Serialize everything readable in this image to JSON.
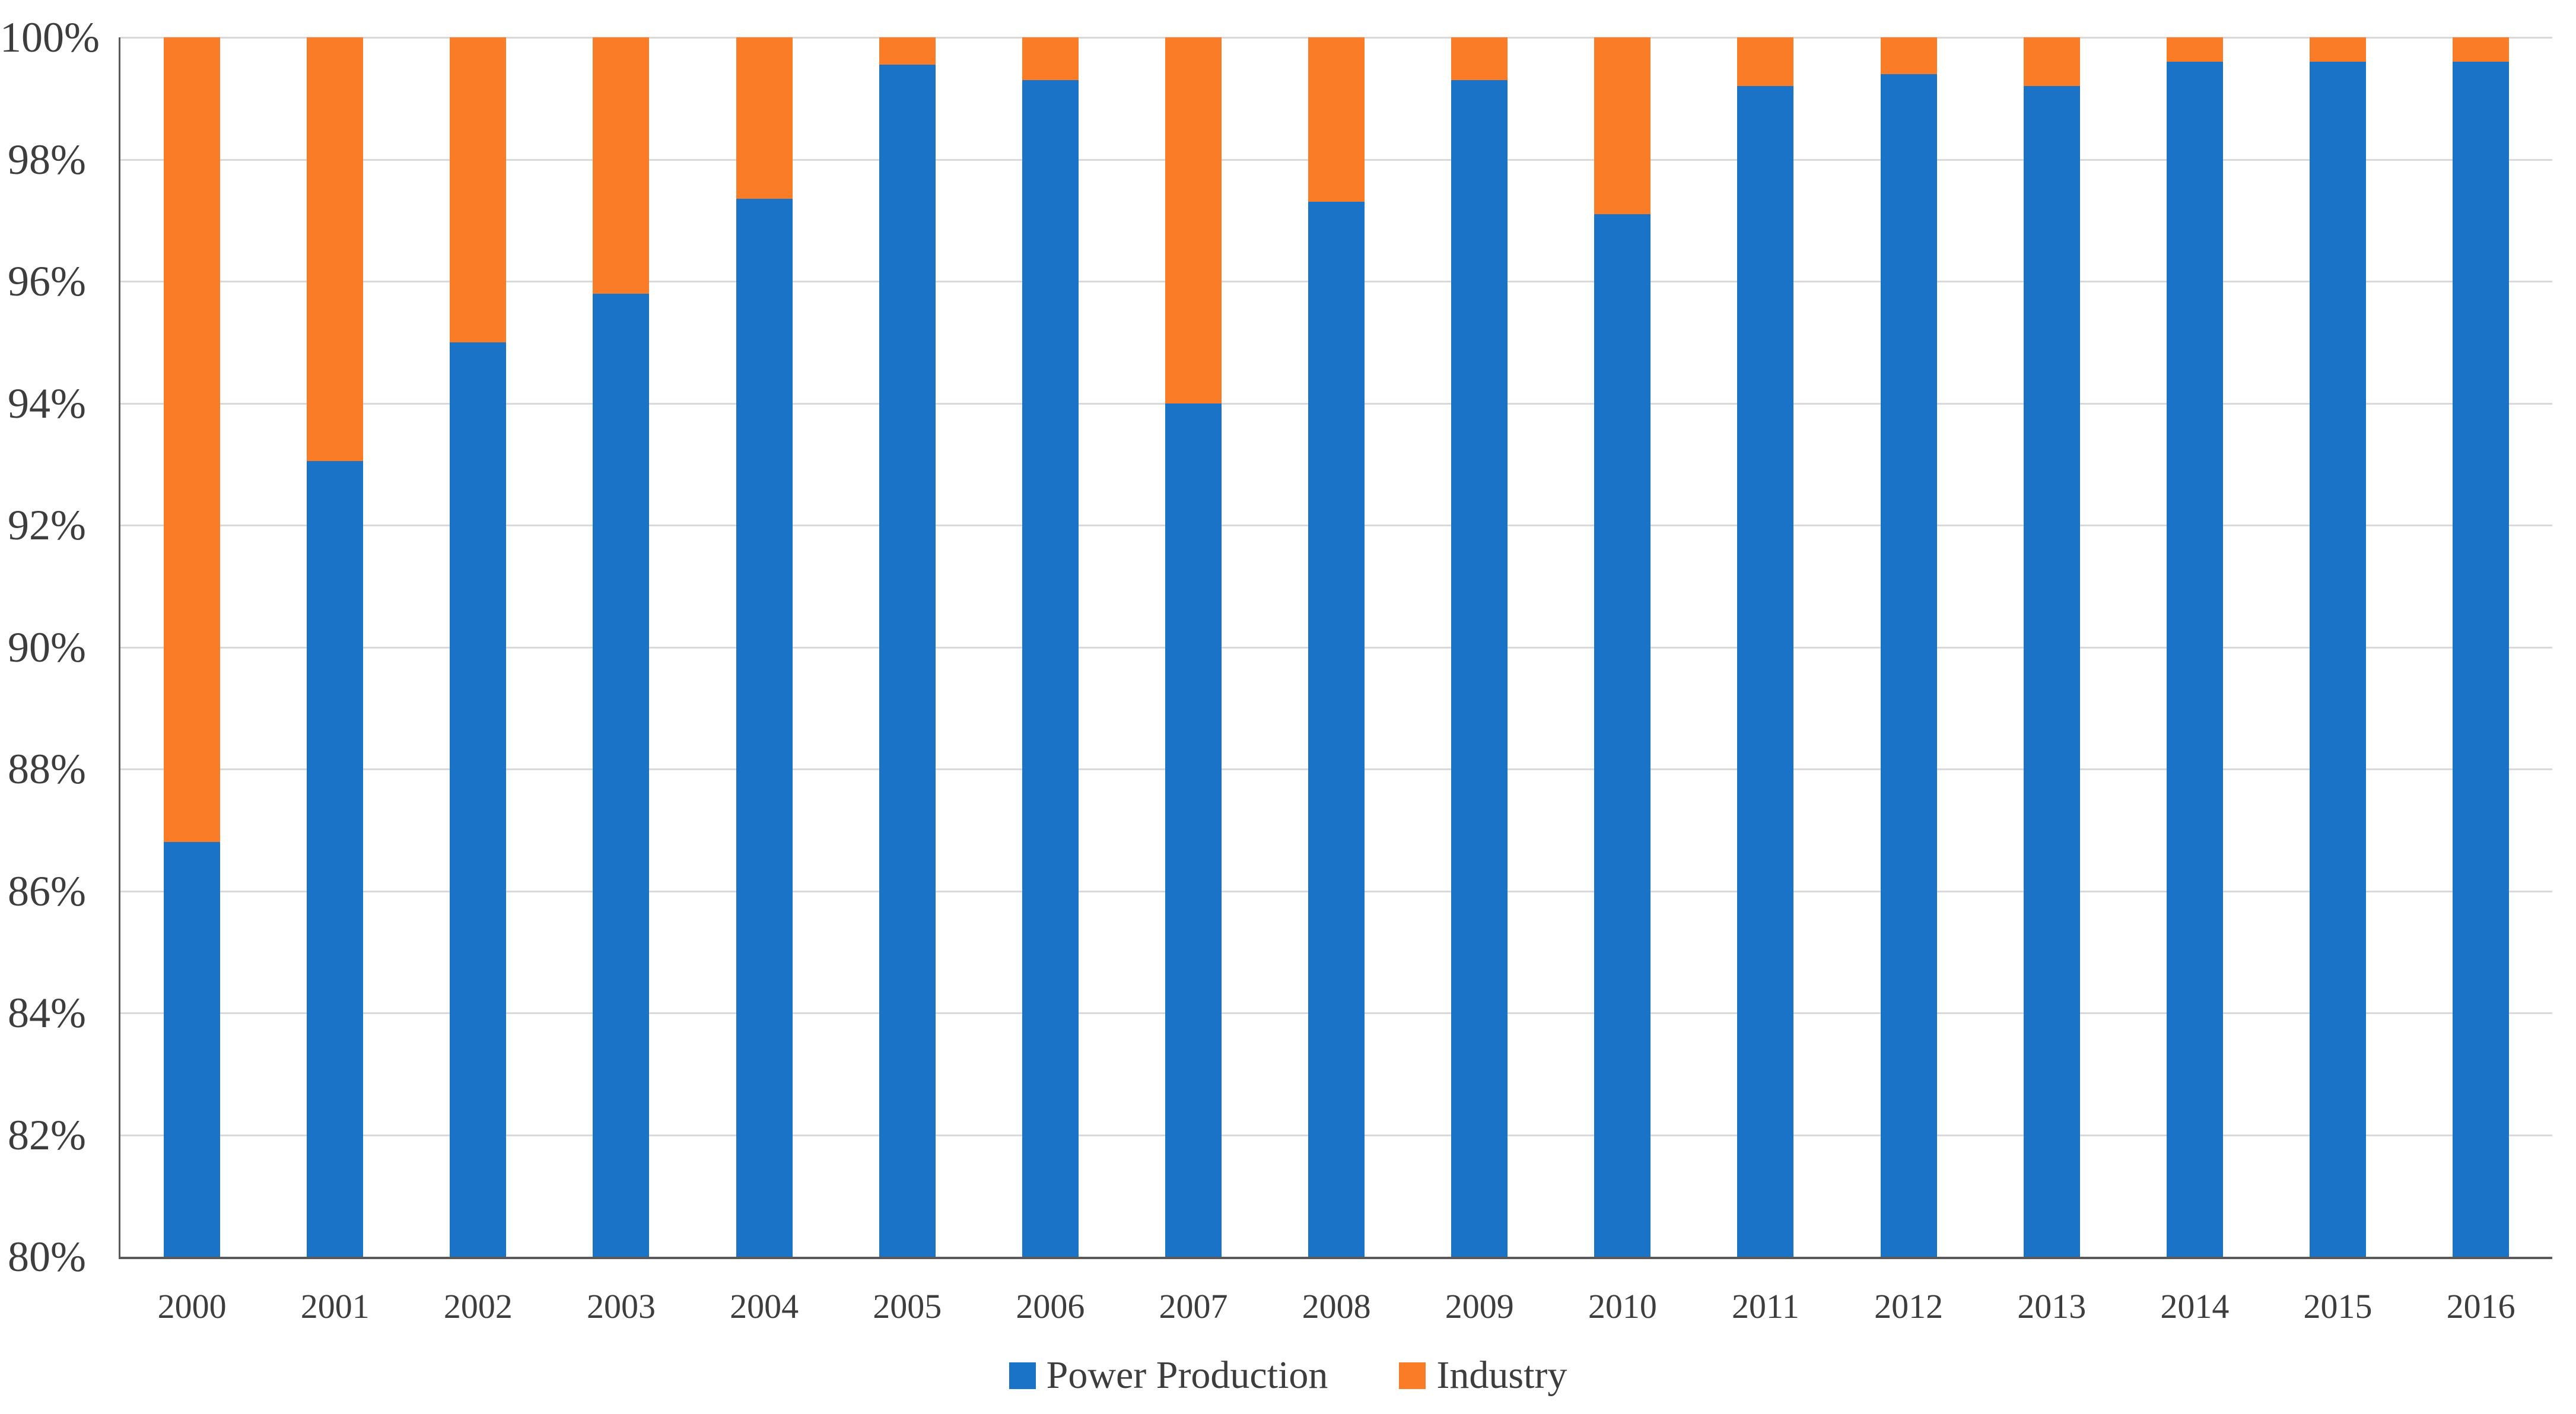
{
  "chart_data": {
    "type": "bar",
    "stacked": true,
    "orientation": "vertical",
    "title": "",
    "xlabel": "",
    "ylabel": "",
    "categories": [
      "2000",
      "2001",
      "2002",
      "2003",
      "2004",
      "2005",
      "2006",
      "2007",
      "2008",
      "2009",
      "2010",
      "2011",
      "2012",
      "2013",
      "2014",
      "2015",
      "2016"
    ],
    "series": [
      {
        "name": "Power Production",
        "color": "#1b73c8",
        "values": [
          86.8,
          93.05,
          95.0,
          95.8,
          97.35,
          99.55,
          99.3,
          94.0,
          97.3,
          99.3,
          97.1,
          99.2,
          99.4,
          99.2,
          99.6,
          99.6,
          99.6
        ]
      },
      {
        "name": "Industry",
        "color": "#fb7c26",
        "values": [
          13.2,
          6.95,
          5.0,
          4.2,
          2.65,
          0.45,
          0.7,
          6.0,
          2.7,
          0.7,
          2.9,
          0.8,
          0.6,
          0.8,
          0.4,
          0.4,
          0.4
        ]
      }
    ],
    "units": "percent",
    "ylim": [
      80,
      100
    ],
    "ytick_step": 2,
    "ytick_labels": [
      "100%",
      "98%",
      "96%",
      "94%",
      "92%",
      "90%",
      "88%",
      "86%",
      "84%",
      "82%",
      "80%"
    ],
    "grid": "horizontal",
    "gridline_color": "#d9d9d9",
    "axis_line_color": "#595959",
    "text_color": "#3d3d3d",
    "legend_position": "bottom",
    "legend_items": [
      "Power Production",
      "Industry"
    ]
  }
}
